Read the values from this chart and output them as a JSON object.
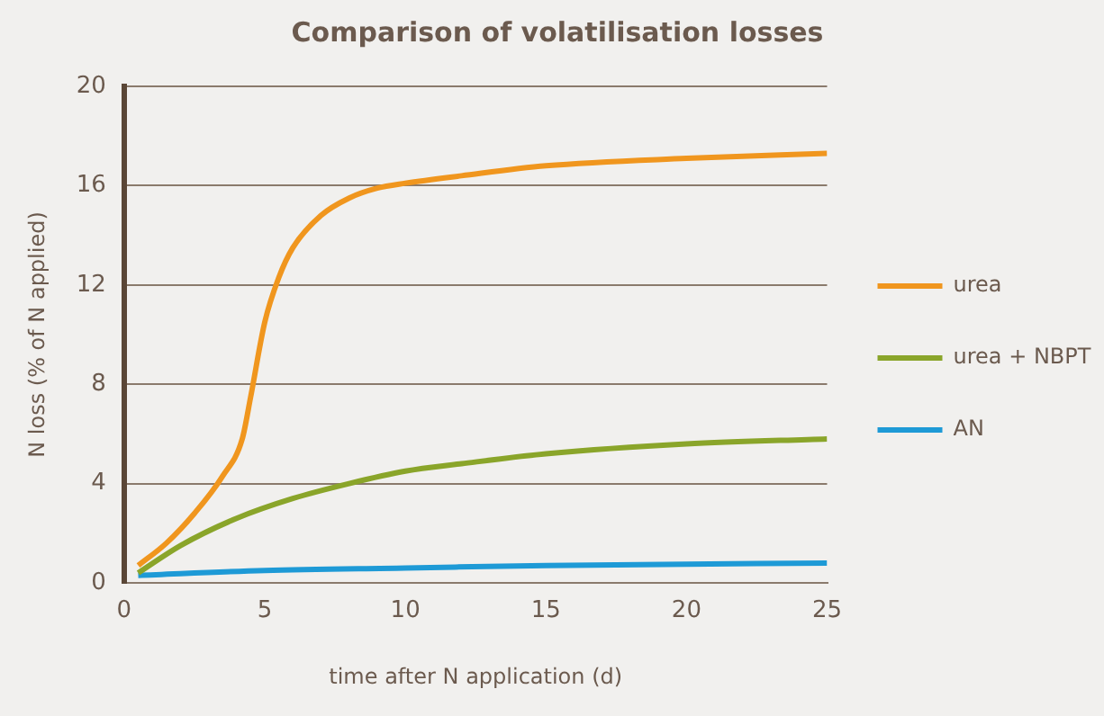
{
  "chart_data": {
    "type": "line",
    "title": "Comparison of volatilisation losses",
    "xlabel": "time after N application (d)",
    "ylabel": "N loss (% of N applied)",
    "xlim": [
      0,
      25
    ],
    "xticks": [
      0,
      5,
      10,
      15,
      20,
      25
    ],
    "ylim": [
      0,
      20
    ],
    "yticks": [
      0,
      4,
      8,
      12,
      16,
      20
    ],
    "grid": "y",
    "legend": "right",
    "marker": "none",
    "series": [
      {
        "name": "urea",
        "color": "#f0961e",
        "x": [
          0.5,
          1.5,
          2.5,
          3.5,
          4.2,
          4.5,
          5,
          5.5,
          6,
          7,
          8,
          9,
          10,
          12,
          15,
          20,
          25
        ],
        "values": [
          0.7,
          1.6,
          2.8,
          4.3,
          5.8,
          7.5,
          10.5,
          12.3,
          13.5,
          14.8,
          15.5,
          15.9,
          16.1,
          16.4,
          16.8,
          17.1,
          17.3
        ]
      },
      {
        "name": "urea + NBPT",
        "color": "#8aa52a",
        "x": [
          0.5,
          2,
          4,
          6,
          8,
          10,
          12,
          15,
          20,
          25
        ],
        "values": [
          0.4,
          1.5,
          2.6,
          3.4,
          4,
          4.5,
          4.8,
          5.2,
          5.6,
          5.8
        ]
      },
      {
        "name": "AN",
        "color": "#1e9ad6",
        "x": [
          0.5,
          5,
          10,
          15,
          20,
          25
        ],
        "values": [
          0.3,
          0.5,
          0.6,
          0.7,
          0.75,
          0.8
        ]
      }
    ]
  }
}
